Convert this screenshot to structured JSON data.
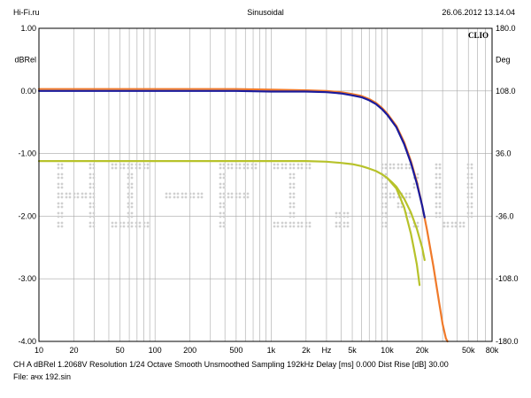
{
  "header": {
    "site": "Hi-Fi.ru",
    "mode": "Sinusoidal",
    "datetime": "26.06.2012 13.14.04"
  },
  "footer": {
    "line1": "CH A  dBRel 1.2068V  Resolution 1/24 Octave   Smooth Unsmoothed   Sampling 192kHz   Delay [ms] 0.000    Dist Rise [dB] 30.00",
    "line2": "File: ачх 192.sin"
  },
  "watermark": "HI-FI.RU",
  "logo": "CLIO",
  "colors": {
    "background": "#ffffff",
    "grid": "#a8a8a8",
    "orange": "#f07a2a",
    "navy": "#1a1a9c",
    "yellow": "#b7c22a",
    "watermark": "#d0d0d0"
  },
  "chart_data": {
    "type": "line",
    "x_scale": "log",
    "xlim": [
      10,
      80000
    ],
    "ylim": [
      -4.0,
      1.0
    ],
    "y2lim": [
      -180,
      180
    ],
    "ylabel": "dBRel",
    "y2label": "Deg",
    "xunit_label": "Hz",
    "grid": true,
    "x_tick_labels": [
      {
        "x": 10,
        "label": "10"
      },
      {
        "x": 20,
        "label": "20"
      },
      {
        "x": 50,
        "label": "50"
      },
      {
        "x": 100,
        "label": "100"
      },
      {
        "x": 200,
        "label": "200"
      },
      {
        "x": 500,
        "label": "500"
      },
      {
        "x": 1000,
        "label": "1k"
      },
      {
        "x": 2000,
        "label": "2k"
      },
      {
        "x": 5000,
        "label": "5k"
      },
      {
        "x": 10000,
        "label": "10k"
      },
      {
        "x": 20000,
        "label": "20k"
      },
      {
        "x": 50000,
        "label": "50k"
      },
      {
        "x": 80000,
        "label": "80k"
      }
    ],
    "y_tick_labels": [
      {
        "y": 1.0,
        "label": "1.00"
      },
      {
        "y": 0.0,
        "label": "0.00"
      },
      {
        "y": -1.0,
        "label": "-1.00"
      },
      {
        "y": -2.0,
        "label": "-2.00"
      },
      {
        "y": -3.0,
        "label": "-3.00"
      },
      {
        "y": -4.0,
        "label": "-4.00"
      }
    ],
    "y2_tick_labels": [
      {
        "y": 180,
        "label": "180.0"
      },
      {
        "y": 108,
        "label": "108.0"
      },
      {
        "y": 36,
        "label": "36.0"
      },
      {
        "y": -36,
        "label": "-36.0"
      },
      {
        "y": -108,
        "label": "-108.0"
      },
      {
        "y": -180,
        "label": "-180.0"
      }
    ],
    "series": [
      {
        "color": "#f07a2a",
        "axis": "left",
        "x": [
          10,
          20,
          50,
          100,
          500,
          1000,
          2000,
          3000,
          4000,
          5000,
          6000,
          7000,
          8000,
          9000,
          10000,
          12000,
          14000,
          16000,
          18000,
          20000,
          22000,
          25000,
          28000,
          30000,
          32000,
          33000
        ],
        "y": [
          0.03,
          0.03,
          0.03,
          0.03,
          0.03,
          0.02,
          0.01,
          0.0,
          -0.02,
          -0.05,
          -0.08,
          -0.13,
          -0.19,
          -0.27,
          -0.36,
          -0.56,
          -0.82,
          -1.12,
          -1.45,
          -1.83,
          -2.22,
          -2.8,
          -3.38,
          -3.72,
          -3.95,
          -4.0
        ]
      },
      {
        "color": "#1a1a9c",
        "axis": "left",
        "x": [
          10,
          20,
          50,
          100,
          500,
          1000,
          2000,
          3000,
          4000,
          5000,
          6000,
          7000,
          8000,
          9000,
          10000,
          12000,
          14000,
          16000,
          18000,
          20000,
          21000
        ],
        "y": [
          0.0,
          0.0,
          0.0,
          0.0,
          0.0,
          -0.01,
          -0.01,
          -0.02,
          -0.04,
          -0.07,
          -0.1,
          -0.15,
          -0.21,
          -0.29,
          -0.38,
          -0.58,
          -0.85,
          -1.15,
          -1.48,
          -1.83,
          -2.02
        ]
      },
      {
        "color": "#b7c22a",
        "axis": "left",
        "x": [
          10,
          20,
          50,
          100,
          200,
          500,
          1000,
          2000,
          3000,
          4000,
          5000,
          6000,
          7000,
          8000,
          9000,
          10000,
          11000,
          12000,
          14000,
          16000,
          18000,
          20000,
          21000
        ],
        "y": [
          -1.12,
          -1.12,
          -1.12,
          -1.12,
          -1.12,
          -1.12,
          -1.12,
          -1.12,
          -1.13,
          -1.15,
          -1.17,
          -1.2,
          -1.24,
          -1.28,
          -1.33,
          -1.39,
          -1.46,
          -1.53,
          -1.72,
          -1.94,
          -2.2,
          -2.5,
          -2.7
        ]
      },
      {
        "color": "#b7c22a",
        "axis": "left",
        "x": [
          10000,
          12000,
          14000,
          16000,
          17000,
          18000,
          19000
        ],
        "y": [
          -1.39,
          -1.56,
          -1.86,
          -2.28,
          -2.53,
          -2.77,
          -3.1
        ]
      }
    ]
  }
}
